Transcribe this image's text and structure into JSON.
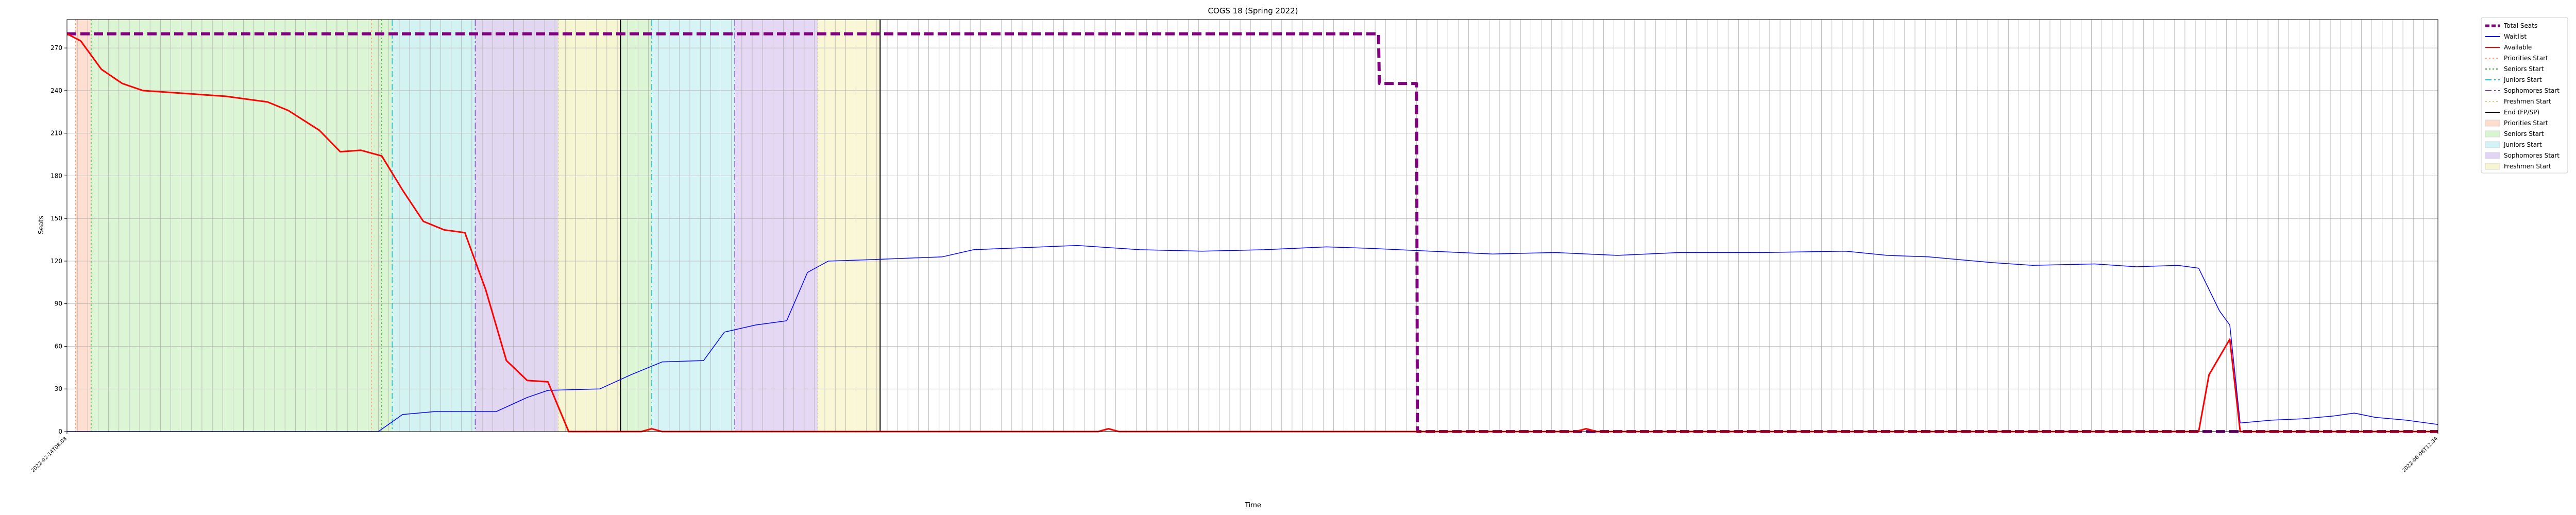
{
  "chart_data": {
    "type": "line",
    "title": "COGS 18 (Spring 2022)",
    "xlabel": "Time",
    "ylabel": "Seats",
    "ylim": [
      0,
      290
    ],
    "yticks": [
      0,
      30,
      60,
      90,
      120,
      150,
      180,
      210,
      240,
      270
    ],
    "grid": true,
    "legend_position": "outside-right",
    "x_tick_labels_shown": [
      "2022-02-14T08:08",
      "2022-06-08T12:34"
    ],
    "x_tick_labels_note_hidden": false,
    "series": [
      {
        "name": "Total Seats",
        "color": "#800080",
        "style": "dashed",
        "points": [
          [
            "2022-02-14T08:08",
            280
          ],
          [
            "2022-04-18T12:00",
            280
          ],
          [
            "2022-04-18T13:00",
            245
          ],
          [
            "2022-04-20T08:00",
            245
          ],
          [
            "2022-04-20T09:00",
            0
          ],
          [
            "2022-06-08T12:34",
            0
          ]
        ]
      },
      {
        "name": "Waitlist",
        "color": "#0000ff",
        "style": "solid",
        "points": [
          [
            "2022-02-14T08:08",
            0
          ],
          [
            "2022-03-01T08:00",
            0
          ],
          [
            "2022-03-02T12:00",
            12
          ],
          [
            "2022-03-04T00:00",
            14
          ],
          [
            "2022-03-07T00:00",
            14
          ],
          [
            "2022-03-08T12:00",
            24
          ],
          [
            "2022-03-09T12:00",
            29
          ],
          [
            "2022-03-12T00:00",
            30
          ],
          [
            "2022-03-13T12:00",
            40
          ],
          [
            "2022-03-15T00:00",
            49
          ],
          [
            "2022-03-17T00:00",
            50
          ],
          [
            "2022-03-18T00:00",
            70
          ],
          [
            "2022-03-19T12:00",
            75
          ],
          [
            "2022-03-21T00:00",
            78
          ],
          [
            "2022-03-22T00:00",
            112
          ],
          [
            "2022-03-23T00:00",
            120
          ],
          [
            "2022-03-25T00:00",
            121
          ],
          [
            "2022-03-28T12:00",
            123
          ],
          [
            "2022-03-30T00:00",
            128
          ],
          [
            "2022-04-04T00:00",
            131
          ],
          [
            "2022-04-07T00:00",
            128
          ],
          [
            "2022-04-10T00:00",
            127
          ],
          [
            "2022-04-13T00:00",
            128
          ],
          [
            "2022-04-16T00:00",
            130
          ],
          [
            "2022-04-18T00:00",
            129
          ],
          [
            "2022-04-21T00:00",
            127
          ],
          [
            "2022-04-24T00:00",
            125
          ],
          [
            "2022-04-27T00:00",
            126
          ],
          [
            "2022-04-30T00:00",
            124
          ],
          [
            "2022-05-03T00:00",
            126
          ],
          [
            "2022-05-07T00:00",
            126
          ],
          [
            "2022-05-11T00:00",
            127
          ],
          [
            "2022-05-13T00:00",
            124
          ],
          [
            "2022-05-15T00:00",
            123
          ],
          [
            "2022-05-18T00:00",
            119
          ],
          [
            "2022-05-20T00:00",
            117
          ],
          [
            "2022-05-23T00:00",
            118
          ],
          [
            "2022-05-25T00:00",
            116
          ],
          [
            "2022-05-27T00:00",
            117
          ],
          [
            "2022-05-28T00:00",
            115
          ],
          [
            "2022-05-29T00:00",
            85
          ],
          [
            "2022-05-29T12:00",
            75
          ],
          [
            "2022-05-30T00:00",
            6
          ],
          [
            "2022-05-31T12:00",
            8
          ],
          [
            "2022-06-02T00:00",
            9
          ],
          [
            "2022-06-03T12:00",
            11
          ],
          [
            "2022-06-04T12:00",
            13
          ],
          [
            "2022-06-05T12:00",
            10
          ],
          [
            "2022-06-07T00:00",
            8
          ],
          [
            "2022-06-08T12:34",
            5
          ]
        ]
      },
      {
        "name": "Available",
        "color": "#ff0000",
        "style": "solid",
        "points": [
          [
            "2022-02-14T08:08",
            280
          ],
          [
            "2022-02-15T00:00",
            275
          ],
          [
            "2022-02-16T00:00",
            255
          ],
          [
            "2022-02-17T00:00",
            245
          ],
          [
            "2022-02-18T00:00",
            240
          ],
          [
            "2022-02-20T00:00",
            238
          ],
          [
            "2022-02-22T00:00",
            236
          ],
          [
            "2022-02-24T00:00",
            232
          ],
          [
            "2022-02-25T00:00",
            226
          ],
          [
            "2022-02-26T12:00",
            212
          ],
          [
            "2022-02-27T12:00",
            197
          ],
          [
            "2022-02-28T12:00",
            198
          ],
          [
            "2022-03-01T12:00",
            194
          ],
          [
            "2022-03-02T12:00",
            170
          ],
          [
            "2022-03-03T12:00",
            148
          ],
          [
            "2022-03-04T12:00",
            142
          ],
          [
            "2022-03-05T12:00",
            140
          ],
          [
            "2022-03-06T12:00",
            100
          ],
          [
            "2022-03-07T12:00",
            50
          ],
          [
            "2022-03-08T12:00",
            36
          ],
          [
            "2022-03-09T12:00",
            35
          ],
          [
            "2022-03-10T12:00",
            0
          ],
          [
            "2022-03-14T00:00",
            0
          ],
          [
            "2022-03-14T12:00",
            2
          ],
          [
            "2022-03-15T00:00",
            0
          ],
          [
            "2022-04-05T00:00",
            0
          ],
          [
            "2022-04-05T12:00",
            2
          ],
          [
            "2022-04-06T00:00",
            0
          ],
          [
            "2022-04-28T00:00",
            0
          ],
          [
            "2022-04-28T12:00",
            2
          ],
          [
            "2022-04-29T00:00",
            0
          ],
          [
            "2022-05-28T00:00",
            0
          ],
          [
            "2022-05-28T12:00",
            40
          ],
          [
            "2022-05-29T12:00",
            65
          ],
          [
            "2022-05-30T00:00",
            0
          ],
          [
            "2022-06-08T12:34",
            0
          ]
        ]
      }
    ],
    "event_lines": [
      {
        "name": "Priorities Start",
        "color": "#ffa07a",
        "style": "dotted",
        "dates": [
          "2022-02-14T18:00",
          "2022-03-01T00:00"
        ]
      },
      {
        "name": "Seniors Start",
        "color": "#2ca02c",
        "style": "dotted",
        "dates": [
          "2022-02-15T12:00",
          "2022-03-01T12:00"
        ]
      },
      {
        "name": "Juniors Start",
        "color": "#17becf",
        "style": "dashdot",
        "dates": [
          "2022-03-02T00:00",
          "2022-03-14T12:00"
        ]
      },
      {
        "name": "Sophomores Start",
        "color": "#7b44c8",
        "style": "dashdot",
        "dates": [
          "2022-03-06T00:00",
          "2022-03-18T12:00"
        ]
      },
      {
        "name": "Freshmen Start",
        "color": "#d8d27c",
        "style": "dotted",
        "dates": [
          "2022-03-10T00:00",
          "2022-03-22T12:00"
        ]
      },
      {
        "name": "End (FP/SP)",
        "color": "#000000",
        "style": "solid",
        "dates": [
          "2022-03-13T00:00",
          "2022-03-25T12:00"
        ]
      }
    ],
    "phase_bands": [
      {
        "name": "Priorities Start",
        "color": "#ffdccc",
        "ranges": [
          [
            "2022-02-14T18:00",
            "2022-02-15T12:00"
          ],
          [
            "2022-03-01T00:00",
            "2022-03-01T12:00"
          ]
        ]
      },
      {
        "name": "Seniors Start",
        "color": "#d8f5d0",
        "ranges": [
          [
            "2022-02-15T12:00",
            "2022-03-02T00:00"
          ],
          [
            "2022-03-01T12:00",
            "2022-03-14T12:00"
          ]
        ]
      },
      {
        "name": "Juniors Start",
        "color": "#d2f2f5",
        "ranges": [
          [
            "2022-03-02T00:00",
            "2022-03-06T00:00"
          ],
          [
            "2022-03-14T12:00",
            "2022-03-18T12:00"
          ]
        ]
      },
      {
        "name": "Sophomores Start",
        "color": "#e2d4f4",
        "ranges": [
          [
            "2022-03-06T00:00",
            "2022-03-10T00:00"
          ],
          [
            "2022-03-18T12:00",
            "2022-03-22T12:00"
          ]
        ]
      },
      {
        "name": "Freshmen Start",
        "color": "#f8f6d2",
        "ranges": [
          [
            "2022-03-10T00:00",
            "2022-03-13T00:00"
          ],
          [
            "2022-03-22T12:00",
            "2022-03-25T12:00"
          ]
        ]
      }
    ],
    "legend": [
      {
        "label": "Total Seats",
        "kind": "line",
        "color": "#800080",
        "style": "dashed"
      },
      {
        "label": "Waitlist",
        "kind": "line",
        "color": "#0000ff",
        "style": "solid"
      },
      {
        "label": "Available",
        "kind": "line",
        "color": "#ff0000",
        "style": "solid"
      },
      {
        "label": "Priorities Start",
        "kind": "line",
        "color": "#ffa07a",
        "style": "dotted"
      },
      {
        "label": "Seniors Start",
        "kind": "line",
        "color": "#2ca02c",
        "style": "dotted"
      },
      {
        "label": "Juniors Start",
        "kind": "line",
        "color": "#17becf",
        "style": "dashdot"
      },
      {
        "label": "Sophomores Start",
        "kind": "line",
        "color": "#7b44c8",
        "style": "dashdot"
      },
      {
        "label": "Freshmen Start",
        "kind": "line",
        "color": "#d8d27c",
        "style": "dotted"
      },
      {
        "label": "End (FP/SP)",
        "kind": "line",
        "color": "#000000",
        "style": "solid"
      },
      {
        "label": "Priorities Start",
        "kind": "patch",
        "color": "#ffdccc"
      },
      {
        "label": "Seniors Start",
        "kind": "patch",
        "color": "#d8f5d0"
      },
      {
        "label": "Juniors Start",
        "kind": "patch",
        "color": "#d2f2f5"
      },
      {
        "label": "Sophomores Start",
        "kind": "patch",
        "color": "#e2d4f4"
      },
      {
        "label": "Freshmen Start",
        "kind": "patch",
        "color": "#f8f6d2"
      }
    ]
  }
}
